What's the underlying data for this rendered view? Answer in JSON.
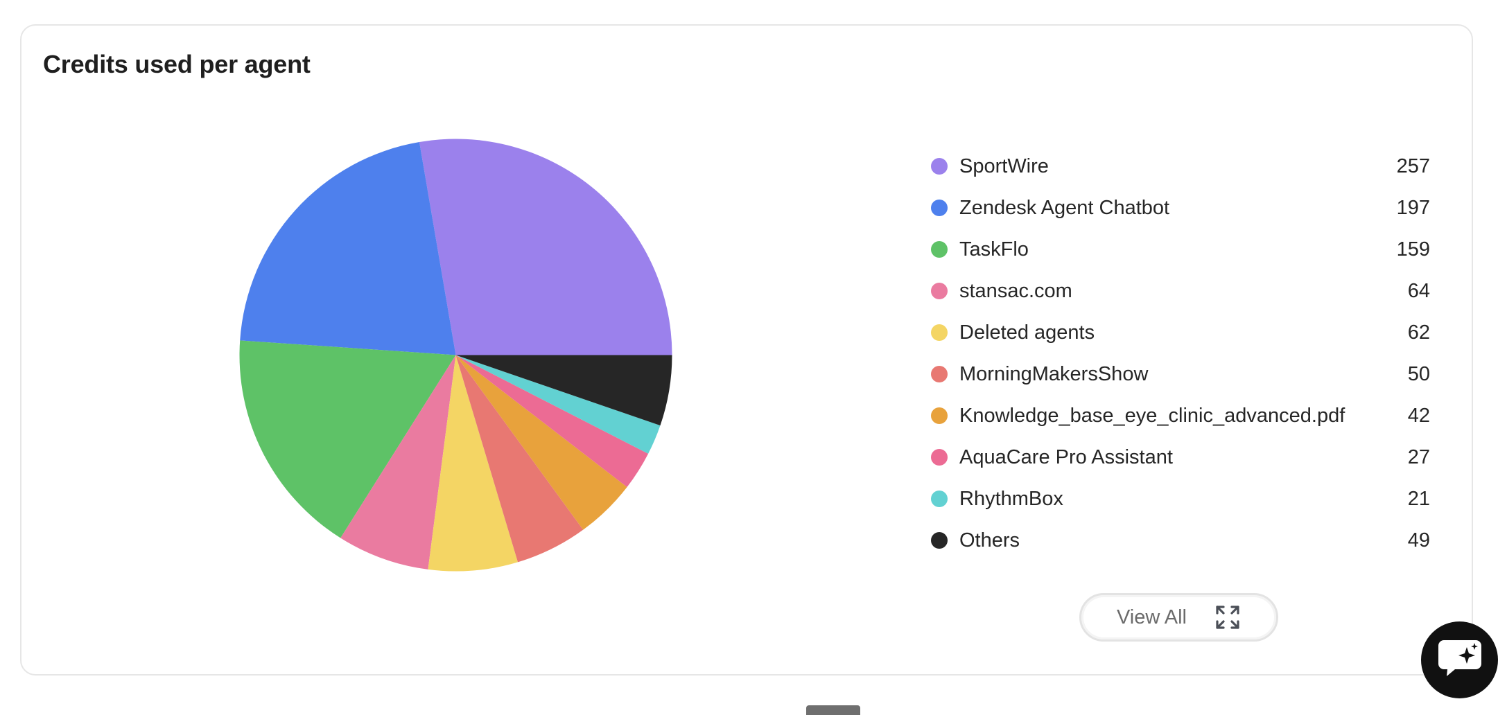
{
  "card": {
    "title": "Credits used per agent"
  },
  "chart_data": {
    "type": "pie",
    "title": "Credits used per agent",
    "categories": [
      "SportWire",
      "Zendesk Agent Chatbot",
      "TaskFlo",
      "stansac.com",
      "Deleted agents",
      "MorningMakersShow",
      "Knowledge_base_eye_clinic_advanced.pdf",
      "AquaCare Pro Assistant",
      "RhythmBox",
      "Others"
    ],
    "values": [
      257,
      197,
      159,
      64,
      62,
      50,
      42,
      27,
      21,
      49
    ],
    "colors": [
      "#9b81ec",
      "#4e80ed",
      "#5ec267",
      "#ea7ba0",
      "#f4d564",
      "#e87872",
      "#e8a23c",
      "#ec6b94",
      "#62d1d2",
      "#262626"
    ],
    "legend_position": "right",
    "start_angle_deg": 0,
    "direction": "counterclockwise"
  },
  "view_all": {
    "label": "View All",
    "icon": "expand-icon"
  },
  "chat_button": {
    "icon": "chat-sparkle-icon"
  }
}
